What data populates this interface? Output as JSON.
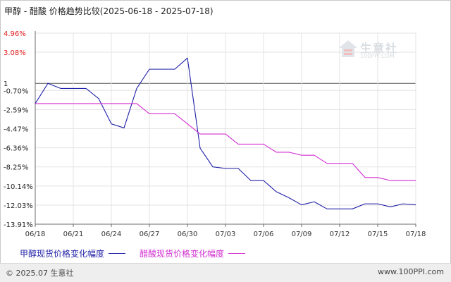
{
  "title": "甲醇 - 醋酸 价格趋势比较(2025-06-18 - 2025-07-18)",
  "watermark": {
    "text": "生意社",
    "sub": "100PPI.COM"
  },
  "footer": {
    "copyright": "© 2025.07 生意社",
    "site": "www.100PPI.com"
  },
  "colors": {
    "series1": "#1f1fa8",
    "series2": "#d22ed2",
    "grid": "#e3e3e3",
    "axis": "#6b6b6b",
    "baseline": "#555555"
  },
  "chart_data": {
    "type": "line",
    "x_ticks": [
      "06/18",
      "06/21",
      "06/24",
      "06/27",
      "06/30",
      "07/03",
      "07/06",
      "07/09",
      "07/12",
      "07/15",
      "07/18"
    ],
    "y_ticks": [
      {
        "label": "4.96%",
        "value": 4.96,
        "color": "#e02020"
      },
      {
        "label": "3.08%",
        "value": 3.08,
        "color": "#e02020"
      },
      {
        "label": "1",
        "value": 0,
        "color": "#222222"
      },
      {
        "label": "-0.70%",
        "value": -0.7,
        "color": "#222222"
      },
      {
        "label": "-2.59%",
        "value": -2.59,
        "color": "#222222"
      },
      {
        "label": "-4.47%",
        "value": -4.47,
        "color": "#222222"
      },
      {
        "label": "-6.36%",
        "value": -6.36,
        "color": "#222222"
      },
      {
        "label": "-8.25%",
        "value": -8.25,
        "color": "#222222"
      },
      {
        "label": "-10.14%",
        "value": -10.14,
        "color": "#222222"
      },
      {
        "label": "-12.03%",
        "value": -12.03,
        "color": "#222222"
      },
      {
        "label": "-13.91%",
        "value": -13.91,
        "color": "#222222"
      }
    ],
    "ylim": [
      -13.91,
      4.96
    ],
    "x_count": 31,
    "series": [
      {
        "name": "甲醇现货价格变化幅度",
        "color": "#1f1fa8",
        "x": [
          0,
          1,
          2,
          3,
          4,
          5,
          6,
          7,
          8,
          9,
          10,
          11,
          12,
          13,
          14,
          15,
          16,
          17,
          18,
          19,
          20,
          21,
          22,
          23,
          24,
          25,
          26,
          27,
          28,
          29,
          30
        ],
        "values": [
          -2.0,
          0.0,
          -0.5,
          -0.5,
          -0.5,
          -1.5,
          -4.0,
          -4.4,
          -0.5,
          1.4,
          1.4,
          1.4,
          2.5,
          -6.4,
          -8.25,
          -8.4,
          -8.4,
          -9.6,
          -9.6,
          -10.7,
          -11.3,
          -12.0,
          -11.7,
          -12.4,
          -12.4,
          -12.4,
          -11.9,
          -11.9,
          -12.2,
          -11.9,
          -12.0
        ]
      },
      {
        "name": "醋酸现货价格变化幅度",
        "color": "#d22ed2",
        "x": [
          0,
          1,
          2,
          3,
          4,
          5,
          6,
          7,
          8,
          9,
          10,
          11,
          12,
          13,
          14,
          15,
          16,
          17,
          18,
          19,
          20,
          21,
          22,
          23,
          24,
          25,
          26,
          27,
          28,
          29,
          30
        ],
        "values": [
          -2.0,
          -2.0,
          -2.0,
          -2.0,
          -2.0,
          -2.0,
          -2.0,
          -2.0,
          -2.0,
          -3.0,
          -3.0,
          -3.0,
          -4.0,
          -5.0,
          -5.0,
          -5.0,
          -6.0,
          -6.0,
          -6.0,
          -6.8,
          -6.8,
          -7.1,
          -7.1,
          -7.9,
          -7.9,
          -7.9,
          -9.3,
          -9.3,
          -9.6,
          -9.6,
          -9.6
        ]
      }
    ]
  }
}
